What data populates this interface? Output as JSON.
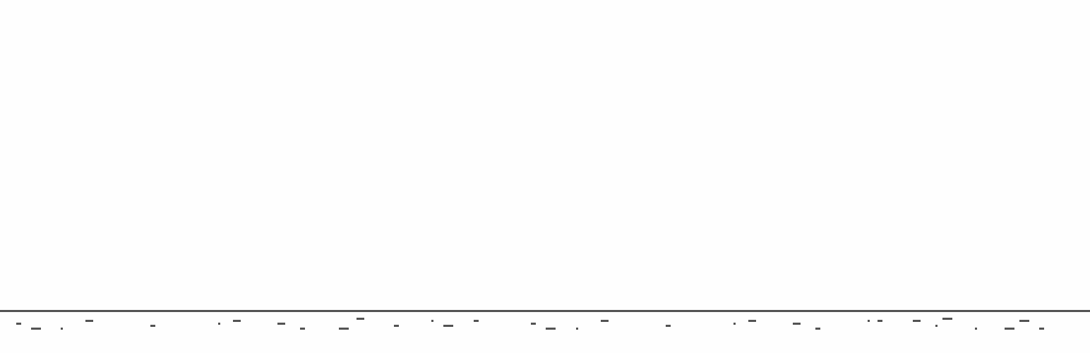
{
  "scene": {
    "name": "runner-game-ground",
    "colors": {
      "background": "#fefefe",
      "ground": "#535353"
    }
  }
}
